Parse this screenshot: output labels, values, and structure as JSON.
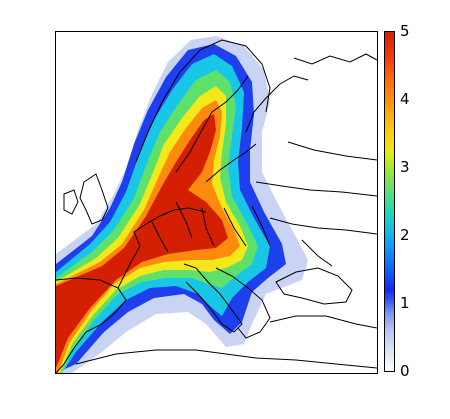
{
  "colorbar": {
    "min": 0,
    "max": 5,
    "tick_labels": [
      "0",
      "1",
      "2",
      "3",
      "4",
      "5"
    ]
  },
  "map": {
    "region": "Europe",
    "field_colors": {
      "level_low": "#c9d3f4",
      "level_blue": "#1d3fee",
      "level_cyan": "#18c6e6",
      "level_green": "#5fe06a",
      "level_yellow": "#f2e81a",
      "level_orange": "#ff8a0e",
      "level_red": "#d41f02"
    },
    "border_color": "#000000"
  }
}
